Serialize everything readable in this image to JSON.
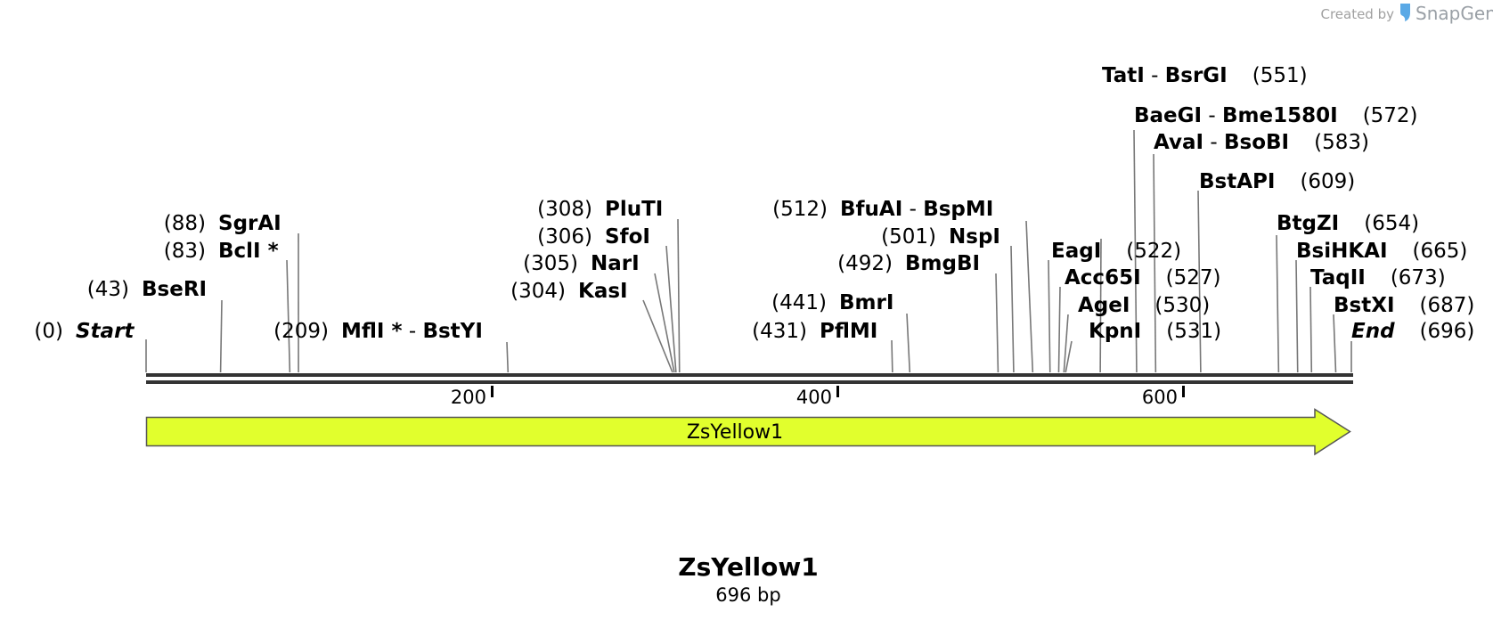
{
  "credit": {
    "prefix": "Created by",
    "brand": "SnapGene",
    "icon": "snapgene-logo-icon",
    "brand_color": "#5aa9e6"
  },
  "sequence": {
    "name": "ZsYellow1",
    "length_label": "696 bp",
    "length": 696,
    "backbone_color": "#333333"
  },
  "ruler": {
    "ticks": [
      "200",
      "400",
      "600"
    ]
  },
  "feature": {
    "name": "ZsYellow1",
    "start": 0,
    "end": 696,
    "direction": "forward",
    "color": "#e1ff2d"
  },
  "sites": [
    {
      "pos_label": "(0)",
      "names": [
        "Start"
      ],
      "style": "italic",
      "cut": 0
    },
    {
      "pos_label": "(43)",
      "names": [
        "BseRI"
      ],
      "cut": 43
    },
    {
      "pos_label": "(83)",
      "names": [
        "BclI *"
      ],
      "cut": 83
    },
    {
      "pos_label": "(88)",
      "names": [
        "SgrAI"
      ],
      "cut": 88
    },
    {
      "pos_label": "(209)",
      "names": [
        "MflI *",
        "BstYI"
      ],
      "cut": 209
    },
    {
      "pos_label": "(304)",
      "names": [
        "KasI"
      ],
      "cut": 304
    },
    {
      "pos_label": "(305)",
      "names": [
        "NarI"
      ],
      "cut": 305
    },
    {
      "pos_label": "(306)",
      "names": [
        "SfoI"
      ],
      "cut": 306
    },
    {
      "pos_label": "(308)",
      "names": [
        "PluTI"
      ],
      "cut": 308
    },
    {
      "pos_label": "(431)",
      "names": [
        "PflMI"
      ],
      "cut": 431
    },
    {
      "pos_label": "(441)",
      "names": [
        "BmrI"
      ],
      "cut": 441
    },
    {
      "pos_label": "(492)",
      "names": [
        "BmgBI"
      ],
      "cut": 492
    },
    {
      "pos_label": "(501)",
      "names": [
        "NspI"
      ],
      "cut": 501
    },
    {
      "pos_label": "(512)",
      "names": [
        "BfuAI",
        "BspMI"
      ],
      "cut": 512
    },
    {
      "pos_label": "(522)",
      "names": [
        "EagI"
      ],
      "cut": 522
    },
    {
      "pos_label": "(527)",
      "names": [
        "Acc65I"
      ],
      "cut": 527
    },
    {
      "pos_label": "(530)",
      "names": [
        "AgeI"
      ],
      "cut": 530
    },
    {
      "pos_label": "(531)",
      "names": [
        "KpnI"
      ],
      "cut": 531
    },
    {
      "pos_label": "(551)",
      "names": [
        "TatI",
        "BsrGI"
      ],
      "cut": 551
    },
    {
      "pos_label": "(572)",
      "names": [
        "BaeGI",
        "Bme1580I"
      ],
      "cut": 572
    },
    {
      "pos_label": "(583)",
      "names": [
        "AvaI",
        "BsoBI"
      ],
      "cut": 583
    },
    {
      "pos_label": "(609)",
      "names": [
        "BstAPI"
      ],
      "cut": 609
    },
    {
      "pos_label": "(654)",
      "names": [
        "BtgZI"
      ],
      "cut": 654
    },
    {
      "pos_label": "(665)",
      "names": [
        "BsiHKAI"
      ],
      "cut": 665
    },
    {
      "pos_label": "(673)",
      "names": [
        "TaqII"
      ],
      "cut": 673
    },
    {
      "pos_label": "(687)",
      "names": [
        "BstXI"
      ],
      "cut": 687
    },
    {
      "pos_label": "(696)",
      "names": [
        "End"
      ],
      "style": "italic",
      "cut": 696
    }
  ]
}
